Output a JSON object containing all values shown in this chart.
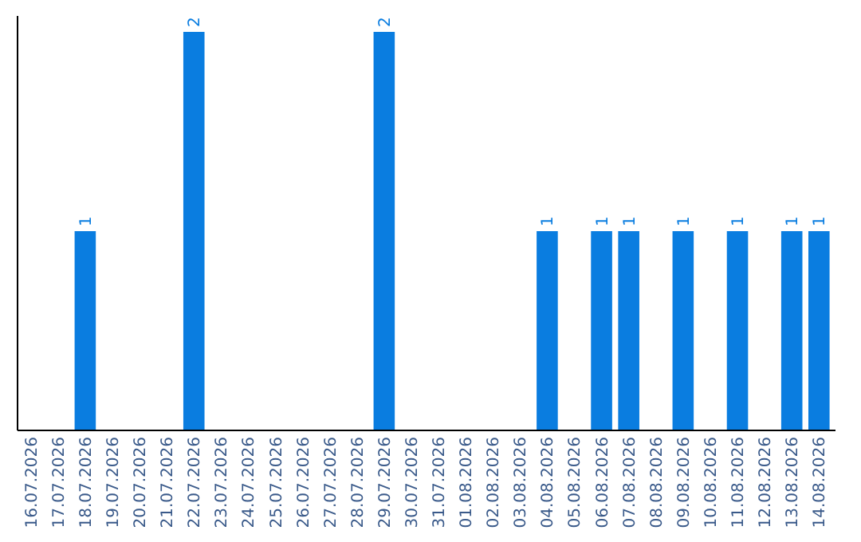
{
  "chart_data": {
    "type": "bar",
    "categories": [
      "16.07.2026",
      "17.07.2026",
      "18.07.2026",
      "19.07.2026",
      "20.07.2026",
      "21.07.2026",
      "22.07.2026",
      "23.07.2026",
      "24.07.2026",
      "25.07.2026",
      "26.07.2026",
      "27.07.2026",
      "28.07.2026",
      "29.07.2026",
      "30.07.2026",
      "31.07.2026",
      "01.08.2026",
      "02.08.2026",
      "03.08.2026",
      "04.08.2026",
      "05.08.2026",
      "06.08.2026",
      "07.08.2026",
      "08.08.2026",
      "09.08.2026",
      "10.08.2026",
      "11.08.2026",
      "12.08.2026",
      "13.08.2026",
      "14.08.2026"
    ],
    "values": [
      0,
      0,
      1,
      0,
      0,
      0,
      2,
      0,
      0,
      0,
      0,
      0,
      0,
      2,
      0,
      0,
      0,
      0,
      0,
      1,
      0,
      1,
      1,
      0,
      1,
      0,
      1,
      0,
      1,
      1
    ],
    "value_labels": [
      null,
      null,
      "1",
      null,
      null,
      null,
      "2",
      null,
      null,
      null,
      null,
      null,
      null,
      "2",
      null,
      null,
      null,
      null,
      null,
      "1",
      null,
      "1",
      "1",
      null,
      "1",
      null,
      "1",
      null,
      "1",
      "1"
    ],
    "color": "#0a7de0",
    "tick_labels": "x"
  }
}
